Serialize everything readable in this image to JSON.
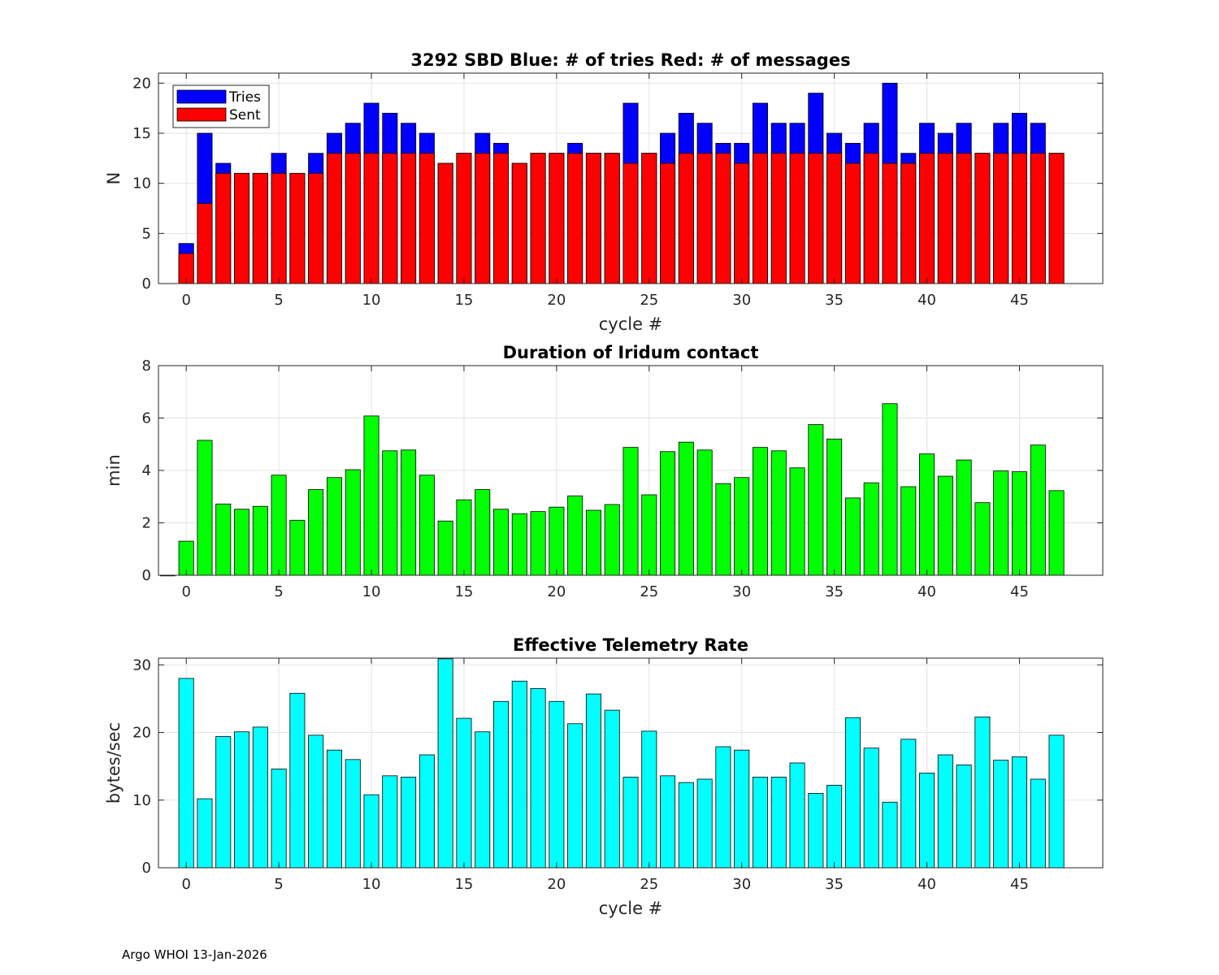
{
  "footer": "Argo WHOI 13-Jan-2026",
  "chart_data": [
    {
      "type": "bar",
      "title": "3292 SBD  Blue: # of tries   Red: # of messages",
      "xlabel": "cycle #",
      "ylabel": "N",
      "xlim": [
        -1.5,
        49.5
      ],
      "ylim": [
        0,
        21
      ],
      "yticks": [
        0,
        5,
        10,
        15,
        20
      ],
      "xticks": [
        0,
        5,
        10,
        15,
        20,
        25,
        30,
        35,
        40,
        45
      ],
      "grid": true,
      "legend": "top-left",
      "x": [
        0,
        1,
        2,
        3,
        4,
        5,
        6,
        7,
        8,
        9,
        10,
        11,
        12,
        13,
        14,
        15,
        16,
        17,
        18,
        19,
        20,
        21,
        22,
        23,
        24,
        25,
        26,
        27,
        28,
        29,
        30,
        31,
        32,
        33,
        34,
        35,
        36,
        37,
        38,
        39,
        40,
        41,
        42,
        43,
        44,
        45,
        46,
        47
      ],
      "series": [
        {
          "name": "Tries",
          "color": "#0000ff",
          "values": [
            4,
            15,
            12,
            11,
            11,
            13,
            11,
            13,
            15,
            16,
            18,
            17,
            16,
            15,
            12,
            13,
            15,
            14,
            12,
            13,
            13,
            14,
            13,
            13,
            18,
            13,
            15,
            17,
            16,
            14,
            14,
            18,
            16,
            16,
            19,
            15,
            14,
            16,
            20,
            13,
            16,
            15,
            16,
            13,
            16,
            17,
            16,
            13
          ]
        },
        {
          "name": "Sent",
          "color": "#ff0000",
          "values": [
            3,
            8,
            11,
            11,
            11,
            11,
            11,
            11,
            13,
            13,
            13,
            13,
            13,
            13,
            12,
            13,
            13,
            13,
            12,
            13,
            13,
            13,
            13,
            13,
            12,
            13,
            12,
            13,
            13,
            13,
            12,
            13,
            13,
            13,
            13,
            13,
            12,
            13,
            12,
            12,
            13,
            13,
            13,
            13,
            13,
            13,
            13,
            13
          ]
        }
      ]
    },
    {
      "type": "bar",
      "title": "Duration of Iridum contact",
      "xlabel": "",
      "ylabel": "min",
      "xlim": [
        -1.5,
        49.5
      ],
      "ylim": [
        0,
        8
      ],
      "yticks": [
        0,
        2,
        4,
        6,
        8
      ],
      "xticks": [
        0,
        5,
        10,
        15,
        20,
        25,
        30,
        35,
        40,
        45
      ],
      "grid": true,
      "color": "#00ff00",
      "x": [
        -1,
        0,
        1,
        2,
        3,
        4,
        5,
        6,
        7,
        8,
        9,
        10,
        11,
        12,
        13,
        14,
        15,
        16,
        17,
        18,
        19,
        20,
        21,
        22,
        23,
        24,
        25,
        26,
        27,
        28,
        29,
        30,
        31,
        32,
        33,
        34,
        35,
        36,
        37,
        38,
        39,
        40,
        41,
        42,
        43,
        44,
        45,
        46,
        47
      ],
      "values": [
        0,
        1.3,
        5.15,
        2.72,
        2.52,
        2.63,
        3.82,
        2.1,
        3.27,
        3.73,
        4.03,
        6.08,
        4.75,
        4.78,
        3.82,
        2.07,
        2.88,
        3.27,
        2.52,
        2.35,
        2.43,
        2.6,
        3.03,
        2.48,
        2.7,
        4.88,
        3.07,
        4.72,
        5.08,
        4.78,
        3.5,
        3.73,
        4.88,
        4.75,
        4.1,
        5.75,
        5.2,
        2.95,
        3.53,
        6.55,
        3.38,
        4.63,
        3.78,
        4.4,
        2.77,
        3.98,
        3.95,
        4.97,
        3.23
      ]
    },
    {
      "type": "bar",
      "title": "Effective Telemetry Rate",
      "xlabel": "cycle #",
      "ylabel": "bytes/sec",
      "xlim": [
        -1.5,
        49.5
      ],
      "ylim": [
        0,
        31
      ],
      "yticks": [
        0,
        10,
        20,
        30
      ],
      "xticks": [
        0,
        5,
        10,
        15,
        20,
        25,
        30,
        35,
        40,
        45
      ],
      "grid": true,
      "color": "#00ffff",
      "x": [
        0,
        1,
        2,
        3,
        4,
        5,
        6,
        7,
        8,
        9,
        10,
        11,
        12,
        13,
        14,
        15,
        16,
        17,
        18,
        19,
        20,
        21,
        22,
        23,
        24,
        25,
        26,
        27,
        28,
        29,
        30,
        31,
        32,
        33,
        34,
        35,
        36,
        37,
        38,
        39,
        40,
        41,
        42,
        43,
        44,
        45,
        46,
        47
      ],
      "values": [
        28,
        10.2,
        19.4,
        20.1,
        20.8,
        14.6,
        25.8,
        19.6,
        17.4,
        16,
        10.8,
        13.6,
        13.4,
        16.7,
        30.9,
        22.1,
        20.1,
        24.6,
        27.6,
        26.5,
        24.6,
        21.3,
        25.7,
        23.3,
        13.4,
        20.2,
        13.6,
        12.6,
        13.1,
        17.9,
        17.4,
        13.4,
        13.4,
        15.5,
        11,
        12.2,
        22.2,
        17.7,
        9.7,
        19,
        14,
        16.7,
        15.2,
        22.3,
        15.9,
        16.4,
        13.1,
        19.6
      ]
    }
  ]
}
